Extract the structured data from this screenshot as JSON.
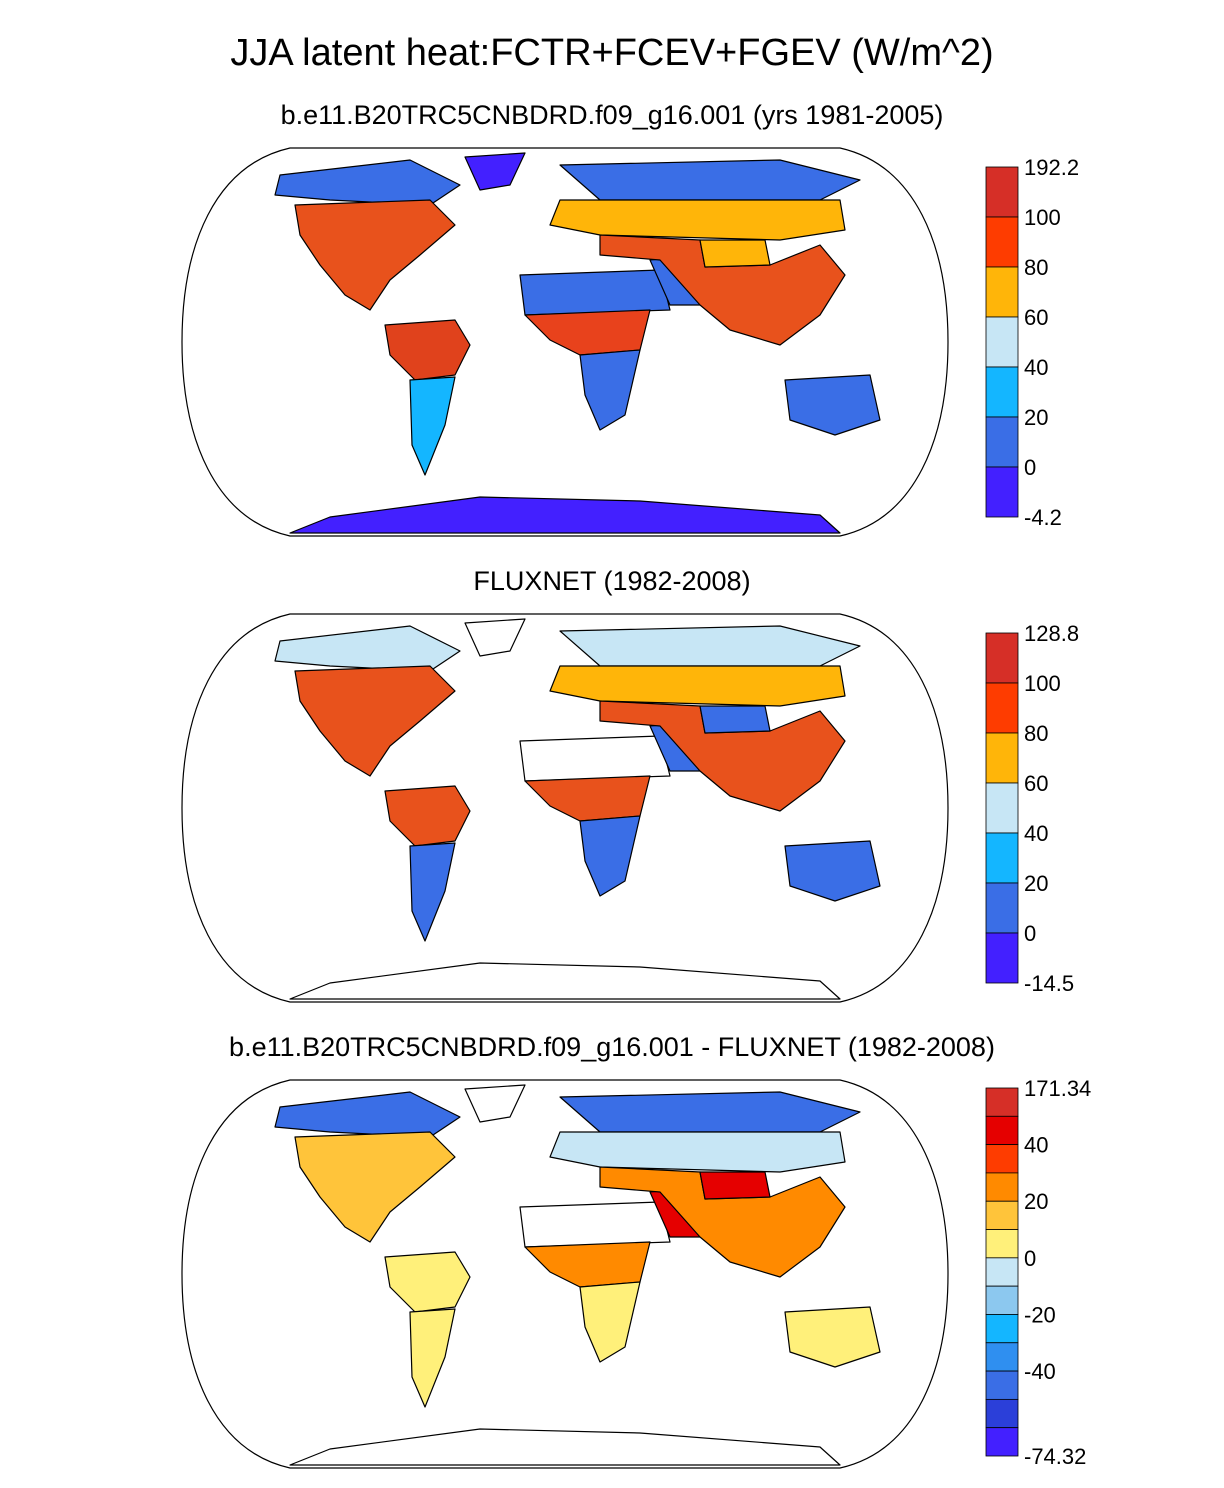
{
  "figure": {
    "title": "JJA latent heat:FCTR+FCEV+FGEV (W/m^2)"
  },
  "panels": [
    {
      "subtitle": "b.e11.B20TRC5CNBDRD.f09_g16.001 (yrs 1981-2005)",
      "colorbar": {
        "labels": [
          "192.2",
          "100",
          "80",
          "60",
          "40",
          "20",
          "0",
          "-4.2"
        ],
        "colors": [
          "#d62f27",
          "#fe3c00",
          "#ffb509",
          "#c7e6f5",
          "#14b6ff",
          "#3a6ee6",
          "#4320ff"
        ]
      },
      "colors": {
        "na": "#e8521c",
        "amazon": "#e0421c",
        "africa_wet": "#e8421c",
        "sahara": "#3a6ee6",
        "asia": "#e8521c",
        "siberia": "#ffb509",
        "arctic": "#3a6ee6",
        "australia": "#3a6ee6",
        "antarctica": "#4320ff",
        "patagonia": "#14b6ff",
        "south_africa": "#3a6ee6",
        "mideast": "#3a6ee6",
        "tibet": "#ffb509",
        "greenland": "#4320ff"
      }
    },
    {
      "subtitle": "FLUXNET (1982-2008)",
      "colorbar": {
        "labels": [
          "128.8",
          "100",
          "80",
          "60",
          "40",
          "20",
          "0",
          "-14.5"
        ],
        "colors": [
          "#d62f27",
          "#fe3c00",
          "#ffb509",
          "#c7e6f5",
          "#14b6ff",
          "#3a6ee6",
          "#4320ff"
        ]
      },
      "colors": {
        "na": "#e8521c",
        "amazon": "#e8521c",
        "africa_wet": "#e8521c",
        "sahara": "#ffffff",
        "asia": "#e8521c",
        "siberia": "#ffb509",
        "arctic": "#c7e6f5",
        "australia": "#3a6ee6",
        "antarctica": "#ffffff",
        "patagonia": "#3a6ee6",
        "south_africa": "#3a6ee6",
        "mideast": "#3a6ee6",
        "tibet": "#3a6ee6",
        "greenland": "#ffffff"
      }
    },
    {
      "subtitle": "b.e11.B20TRC5CNBDRD.f09_g16.001 - FLUXNET (1982-2008)",
      "colorbar": {
        "labels": [
          "171.34",
          "",
          "40",
          "",
          "20",
          "",
          "0",
          "",
          "-20",
          "",
          "-40",
          "",
          "",
          "-74.32"
        ],
        "label_indices": [
          0,
          2,
          4,
          6,
          8,
          10,
          13
        ],
        "colors": [
          "#d62f27",
          "#e50000",
          "#fe3c00",
          "#ff8a00",
          "#ffc43a",
          "#fff07a",
          "#c7e6f5",
          "#8cc8ef",
          "#14b6ff",
          "#2f8ff0",
          "#3a6ee6",
          "#2b3fd9",
          "#4320ff"
        ]
      },
      "colors": {
        "na": "#ffc43a",
        "amazon": "#fff07a",
        "africa_wet": "#ff8a00",
        "sahara": "#ffffff",
        "asia": "#ff8a00",
        "siberia": "#c7e6f5",
        "arctic": "#3a6ee6",
        "australia": "#fff07a",
        "antarctica": "#ffffff",
        "patagonia": "#fff07a",
        "south_africa": "#fff07a",
        "mideast": "#e50000",
        "tibet": "#e50000",
        "greenland": "#ffffff"
      }
    }
  ]
}
